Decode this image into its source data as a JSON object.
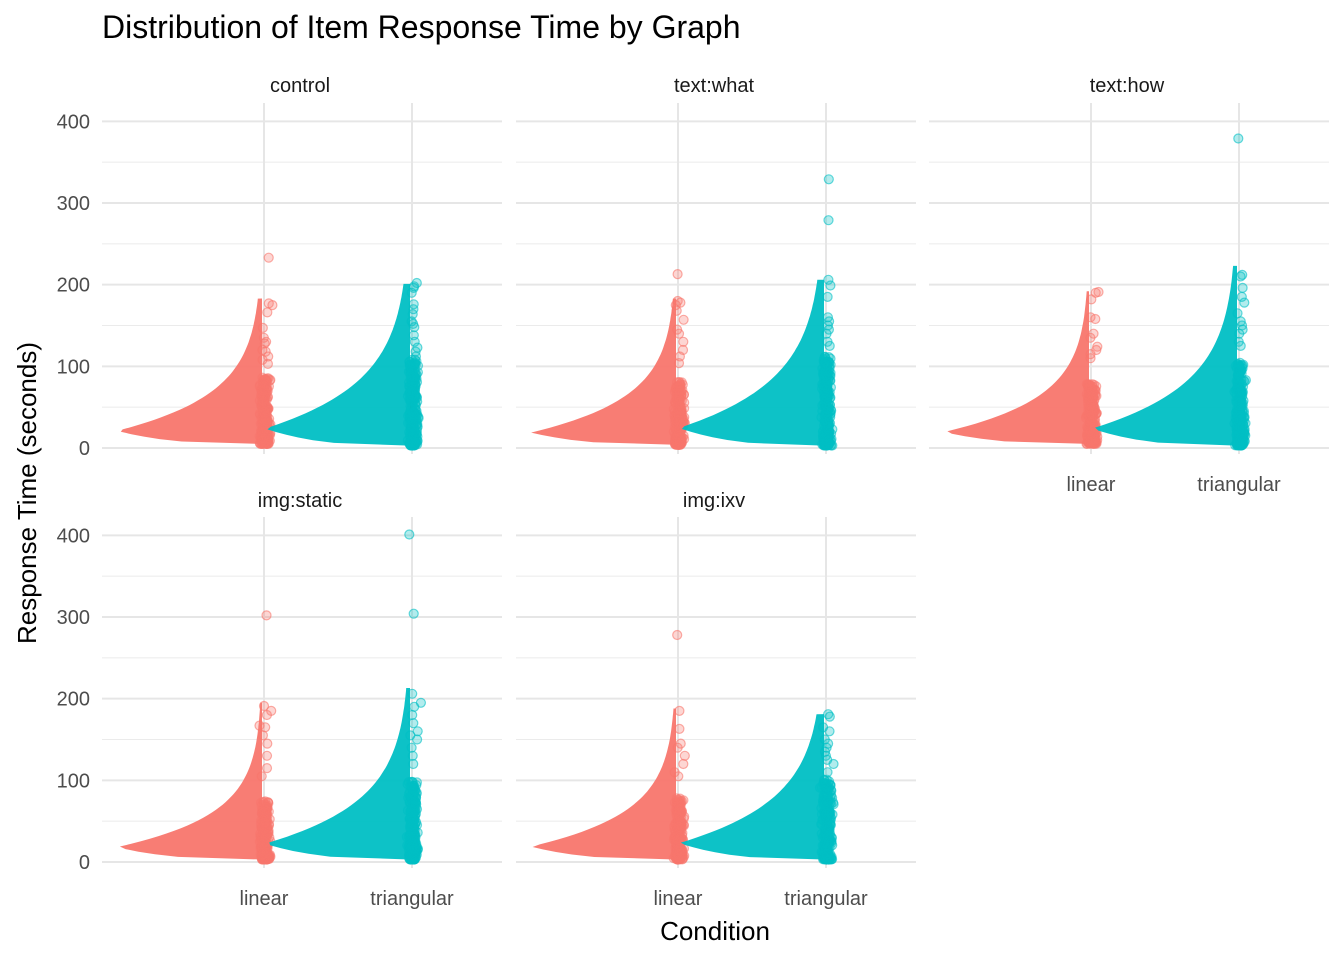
{
  "chart_data": {
    "type": "raincloud",
    "title": "Distribution of Item Response Time by Graph",
    "xlabel": "Condition",
    "ylabel": "Response Time (seconds)",
    "categories": [
      "linear",
      "triangular"
    ],
    "ylim": [
      0,
      420
    ],
    "yticks": [
      0,
      100,
      200,
      300,
      400
    ],
    "y_tick_labels": [
      "0",
      "100",
      "200",
      "300",
      "400"
    ],
    "grid": true,
    "legend": "none",
    "colors": {
      "linear": "#F8766D",
      "triangular": "#00BFC4"
    },
    "panels": [
      {
        "name": "control",
        "series": [
          {
            "category": "linear",
            "min": 5,
            "max": 183,
            "q1": 20,
            "median": 30,
            "q3": 48,
            "outliers": [
              233,
              177,
              175,
              166,
              147,
              135,
              130,
              128,
              120,
              118,
              112,
              108,
              103
            ]
          },
          {
            "category": "triangular",
            "min": 3,
            "max": 201,
            "q1": 22,
            "median": 34,
            "q3": 60,
            "outliers": [
              202,
              198,
              196,
              190,
              176,
              170,
              164,
              155,
              152,
              148,
              138,
              130,
              123,
              118,
              112
            ]
          }
        ]
      },
      {
        "name": "text:what",
        "series": [
          {
            "category": "linear",
            "min": 4,
            "max": 183,
            "q1": 18,
            "median": 27,
            "q3": 45,
            "outliers": [
              213,
              180,
              178,
              175,
              168,
              157,
              145,
              140,
              130,
              120,
              112,
              104
            ]
          },
          {
            "category": "triangular",
            "min": 3,
            "max": 206,
            "q1": 22,
            "median": 35,
            "q3": 62,
            "outliers": [
              329,
              279,
              206,
              199,
              185,
              160,
              155,
              150,
              145,
              140,
              130,
              125
            ]
          }
        ]
      },
      {
        "name": "text:how",
        "series": [
          {
            "category": "linear",
            "min": 5,
            "max": 192,
            "q1": 18,
            "median": 28,
            "q3": 44,
            "outliers": [
              191,
              190,
              182,
              160,
              158,
              140,
              135,
              124,
              120,
              115,
              110
            ]
          },
          {
            "category": "triangular",
            "min": 3,
            "max": 223,
            "q1": 20,
            "median": 34,
            "q3": 58,
            "outliers": [
              379,
              212,
              210,
              196,
              185,
              178,
              165,
              155,
              150,
              145,
              140,
              130,
              125
            ]
          }
        ]
      },
      {
        "name": "img:static",
        "series": [
          {
            "category": "linear",
            "min": 3,
            "max": 195,
            "q1": 17,
            "median": 26,
            "q3": 42,
            "outliers": [
              302,
              191,
              185,
              180,
              167,
              165,
              155,
              145,
              130,
              115,
              105
            ]
          },
          {
            "category": "triangular",
            "min": 3,
            "max": 213,
            "q1": 20,
            "median": 32,
            "q3": 55,
            "outliers": [
              401,
              304,
              206,
              195,
              190,
              180,
              170,
              160,
              155,
              150,
              140,
              130,
              120
            ]
          }
        ]
      },
      {
        "name": "img:ixv",
        "series": [
          {
            "category": "linear",
            "min": 3,
            "max": 188,
            "q1": 18,
            "median": 27,
            "q3": 44,
            "outliers": [
              278,
              185,
              163,
              145,
              140,
              130,
              120,
              110,
              105
            ]
          },
          {
            "category": "triangular",
            "min": 3,
            "max": 181,
            "q1": 20,
            "median": 33,
            "q3": 56,
            "outliers": [
              181,
              178,
              165,
              160,
              150,
              145,
              140,
              135,
              130,
              125,
              120,
              110
            ]
          }
        ]
      }
    ]
  }
}
